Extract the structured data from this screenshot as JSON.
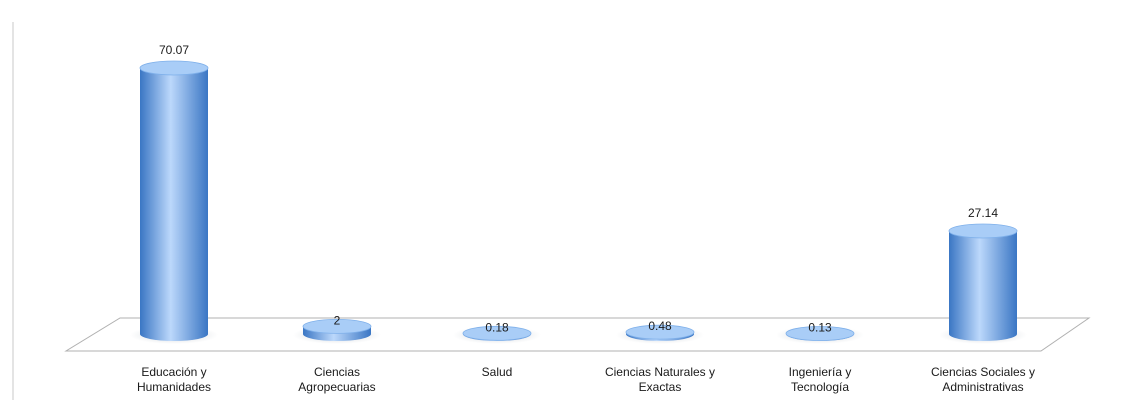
{
  "chart_data": {
    "type": "bar",
    "title": "",
    "xlabel": "",
    "ylabel": "",
    "categories": [
      [
        "Educación y",
        "Humanidades"
      ],
      [
        "Ciencias",
        "Agropecuarias"
      ],
      [
        "Salud"
      ],
      [
        "Ciencias Naturales y",
        "Exactas"
      ],
      [
        "Ingeniería y",
        "Tecnología"
      ],
      [
        "Ciencias Sociales y",
        "Administrativas"
      ]
    ],
    "values": [
      70.07,
      2,
      0.18,
      0.48,
      0.13,
      27.14
    ],
    "value_labels": [
      "70.07",
      "2",
      "0.18",
      "0.48",
      "0.13",
      "27.14"
    ],
    "ylim": [
      0,
      75
    ],
    "grid": false,
    "legend": "none",
    "colors": {
      "bar_light": "#bcd8fb",
      "bar_mid": "#7fb0ea",
      "bar_dark": "#3a76c4",
      "bar_top": "#a9cdf7",
      "floor_stroke": "#b0b0b0",
      "axis_stroke": "#c8c8c8"
    }
  }
}
